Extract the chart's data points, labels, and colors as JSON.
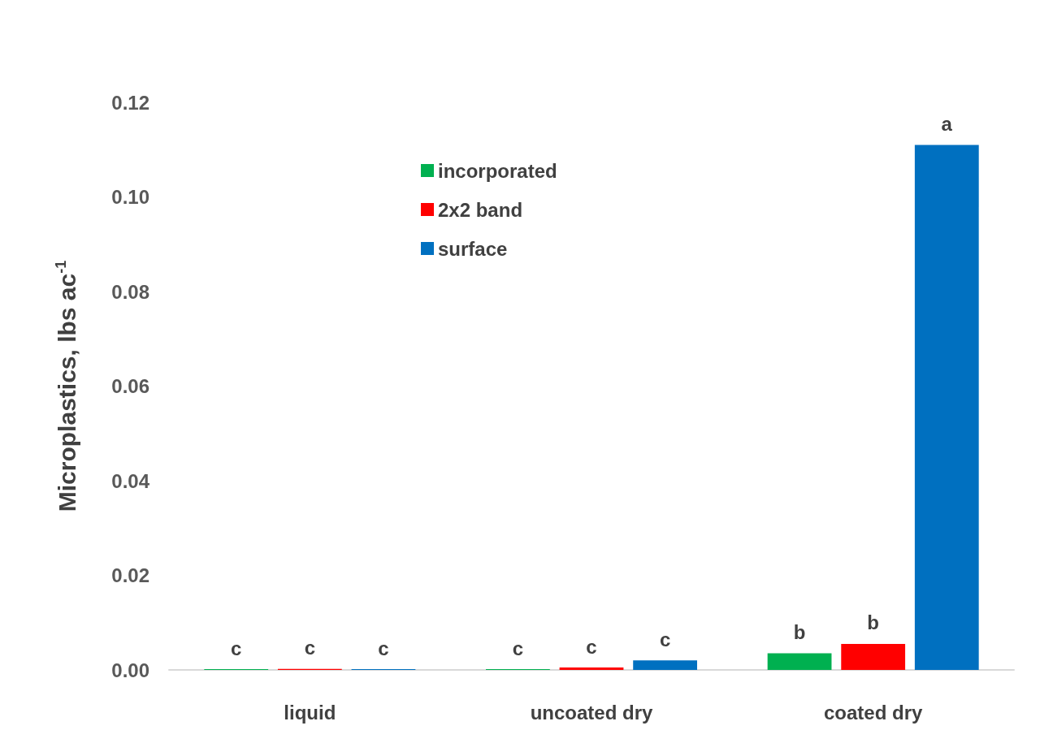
{
  "chart_data": {
    "type": "bar",
    "ylabel": "Microplastics, lbs ac$^{-1}$",
    "categories": [
      "liquid",
      "uncoated dry",
      "coated dry"
    ],
    "series": [
      {
        "name": "incorporated",
        "color": "#00b050",
        "values": [
          0.0001,
          0.0001,
          0.0035
        ],
        "value_labels": [
          "c",
          "c",
          "b"
        ]
      },
      {
        "name": "2x2 band",
        "color": "#ff0000",
        "values": [
          0.0002,
          0.0005,
          0.0055
        ],
        "value_labels": [
          "c",
          "c",
          "b"
        ]
      },
      {
        "name": "surface",
        "color": "#0070c0",
        "values": [
          0.0001,
          0.002,
          0.111
        ],
        "value_labels": [
          "c",
          "c",
          "a"
        ]
      }
    ],
    "ylim": [
      0,
      0.12
    ],
    "yticks": [
      {
        "value": 0,
        "label": "0.00"
      },
      {
        "value": 0.02,
        "label": "0.02"
      },
      {
        "value": 0.04,
        "label": "0.04"
      },
      {
        "value": 0.06,
        "label": "0.06"
      },
      {
        "value": 0.08,
        "label": "0.08"
      },
      {
        "value": 0.1,
        "label": "0.10"
      },
      {
        "value": 0.12,
        "label": "0.12"
      }
    ],
    "grid": false,
    "legend": "top"
  }
}
